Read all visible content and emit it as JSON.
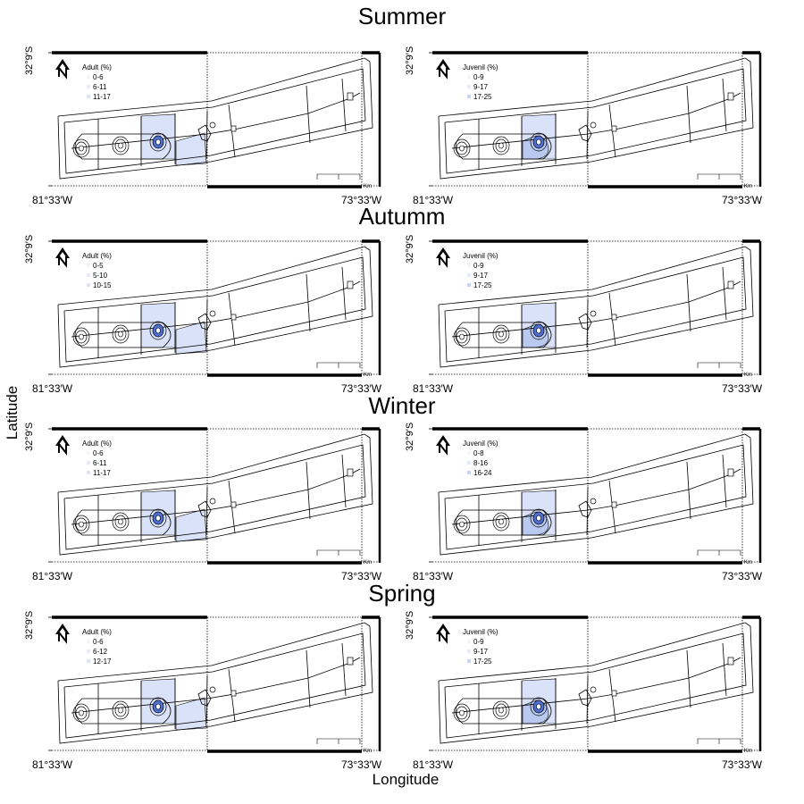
{
  "axes": {
    "xlabel": "Longitude",
    "ylabel": "Latitude"
  },
  "ticks": {
    "lat": "32°9′S",
    "lon_left": "81°33′W",
    "lon_right": "73°33′W",
    "scale_unit": "Km"
  },
  "colors": {
    "light": "#d9e2f8",
    "mid": "#b9c9f0",
    "dark": "#4f6fd0",
    "line": "#000000"
  },
  "icons": [
    "north-arrow-icon"
  ],
  "seasons": [
    {
      "title": "Summer",
      "panels": [
        {
          "legend_title": "Adult (%)",
          "classes": [
            "0-6",
            "6-11",
            "11-17"
          ]
        },
        {
          "legend_title": "Juvenil (%)",
          "classes": [
            "0-9",
            "9-17",
            "17-25"
          ]
        }
      ]
    },
    {
      "title": "Autumm",
      "panels": [
        {
          "legend_title": "Adult (%)",
          "classes": [
            "0-5",
            "5-10",
            "10-15"
          ]
        },
        {
          "legend_title": "Juvenil (%)",
          "classes": [
            "0-9",
            "9-17",
            "17-25"
          ]
        }
      ]
    },
    {
      "title": "Winter",
      "panels": [
        {
          "legend_title": "Adult (%)",
          "classes": [
            "0-6",
            "6-11",
            "11-17"
          ]
        },
        {
          "legend_title": "Juvenil (%)",
          "classes": [
            "0-8",
            "8-16",
            "16-24"
          ]
        }
      ]
    },
    {
      "title": "Spring",
      "panels": [
        {
          "legend_title": "Adult (%)",
          "classes": [
            "0-6",
            "6-12",
            "12-17"
          ]
        },
        {
          "legend_title": "Juvenil (%)",
          "classes": [
            "0-9",
            "9-17",
            "17-25"
          ]
        }
      ]
    }
  ]
}
